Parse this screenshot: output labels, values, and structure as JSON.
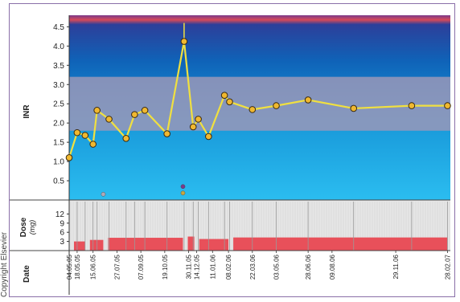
{
  "copyright": "Copyright Elsevier",
  "chart_data": {
    "type": "line",
    "panels": {
      "inr": {
        "ylabel": "INR",
        "ylim": [
          0,
          4.8
        ],
        "yticks": [
          "0.5",
          "1.0",
          "1.5",
          "2.0",
          "2.5",
          "3.0",
          "3.5",
          "4.0",
          "4.5"
        ],
        "target_range": [
          1.8,
          3.2
        ]
      },
      "dose": {
        "ylabel": "Dose",
        "unit": "(mg)",
        "ylim": [
          0,
          15
        ],
        "yticks": [
          "3",
          "6",
          "9",
          "12"
        ]
      },
      "date": {
        "label": "Date"
      }
    },
    "date_ticks": [
      "04.05.05",
      "18.05.05",
      "15.06.05",
      "27.07.05",
      "07.09.05",
      "19.10.05",
      "30.11.05",
      "14.12.05",
      "11.01.06",
      "08.02.06",
      "22.03.06",
      "03.05.06",
      "28.06.06",
      "09.08.06",
      "29.11.06",
      "28.02.07"
    ],
    "date_tick_days": [
      0,
      14,
      42,
      84,
      126,
      168,
      210,
      224,
      252,
      280,
      322,
      364,
      420,
      462,
      574,
      665
    ],
    "inr_series": {
      "x_days": [
        0,
        14,
        28,
        42,
        49,
        70,
        100,
        115,
        133,
        172,
        202,
        218,
        227,
        245,
        273,
        282,
        322,
        364,
        420,
        500,
        602,
        665
      ],
      "values": [
        1.1,
        1.75,
        1.68,
        1.45,
        2.33,
        2.1,
        1.6,
        2.22,
        2.33,
        1.72,
        4.12,
        1.9,
        2.1,
        1.65,
        2.72,
        2.55,
        2.35,
        2.45,
        2.6,
        2.38,
        2.45,
        2.45
      ]
    },
    "markers": [
      {
        "x_day": 60,
        "y": 0.15,
        "color": "#b0a8b8"
      },
      {
        "x_day": 200,
        "y": 0.35,
        "color": "#7a3a8a"
      },
      {
        "x_day": 200,
        "y": 0.18,
        "color": "#c9a640"
      }
    ],
    "dose_levels": [
      {
        "from_day": 0,
        "to_day": 28,
        "value": 3.0
      },
      {
        "from_day": 28,
        "to_day": 60,
        "value": 3.5
      },
      {
        "from_day": 60,
        "to_day": 200,
        "value": 4.2
      },
      {
        "from_day": 200,
        "to_day": 220,
        "value": 4.6
      },
      {
        "from_day": 220,
        "to_day": 280,
        "value": 3.8
      },
      {
        "from_day": 280,
        "to_day": 665,
        "value": 4.3
      }
    ],
    "dose_lines_days": [
      0,
      14,
      28,
      42,
      49,
      70,
      100,
      115,
      133,
      172,
      202,
      218,
      227,
      245,
      273,
      282,
      322,
      364,
      420,
      500,
      602,
      665
    ],
    "colors": {
      "line": "#f0e040",
      "point_fill": "#f0b830",
      "point_stroke": "#3a2a10",
      "target_band": "#9a98b8",
      "dose_bar": "#e8505a",
      "dose_bg": "#e6e6e6"
    }
  }
}
